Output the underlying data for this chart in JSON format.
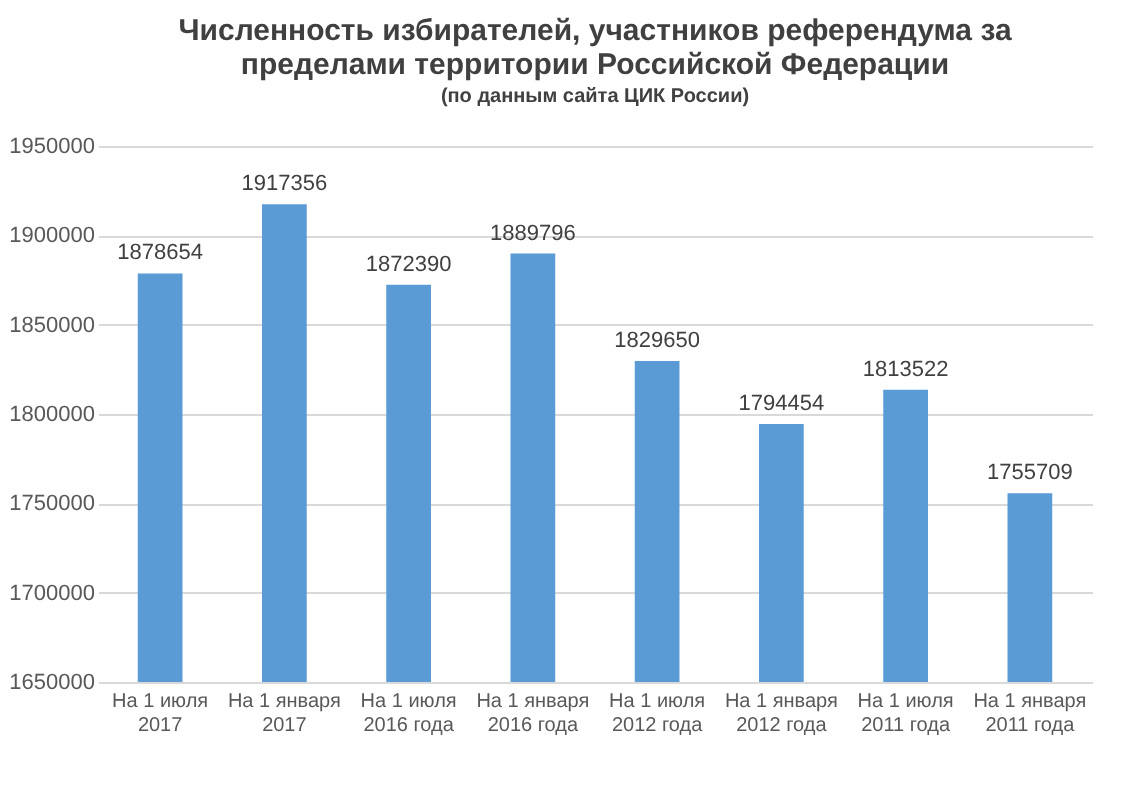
{
  "chart_data": {
    "type": "bar",
    "title": "Численность избирателей, участников референдума за пределами территории Российской Федерации",
    "subtitle": "(по данным сайта ЦИК России)",
    "categories": [
      "На 1 июля 2017",
      "На 1 января 2017",
      "На 1 июля 2016 года",
      "На 1 января 2016 года",
      "На 1 июля 2012 года",
      "На 1 января 2012 года",
      "На 1 июля 2011 года",
      "На 1 января 2011 года"
    ],
    "values": [
      1878654,
      1917356,
      1872390,
      1889796,
      1829650,
      1794454,
      1813522,
      1755709
    ],
    "color": "#5b9bd5",
    "ylim": [
      1650000,
      1950000
    ],
    "yticks": [
      1650000,
      1700000,
      1750000,
      1800000,
      1850000,
      1900000,
      1950000
    ],
    "grid": true,
    "data_labels": true
  }
}
